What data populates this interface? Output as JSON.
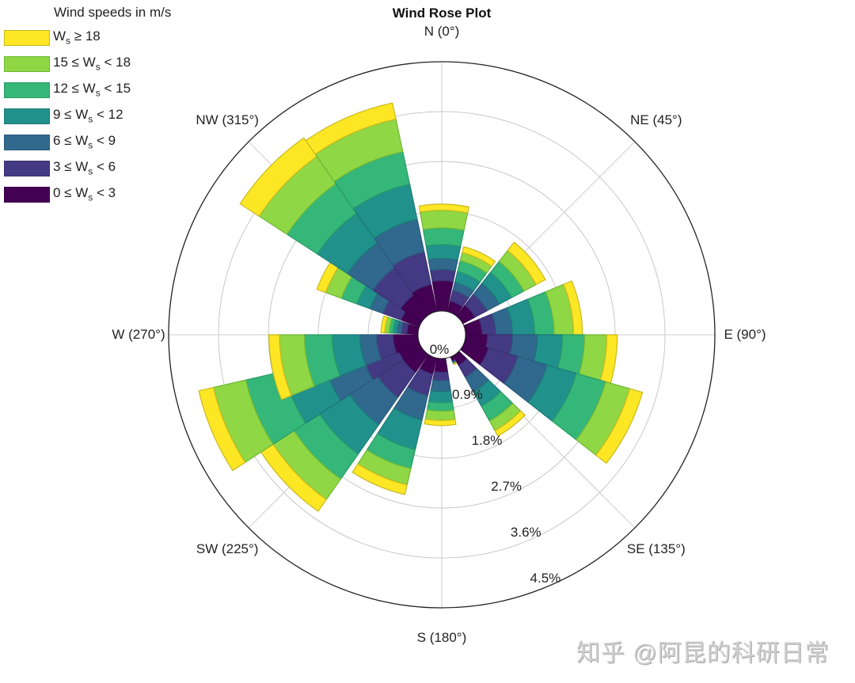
{
  "chart_data": {
    "type": "polar-bar (wind rose)",
    "title": "Wind Rose Plot",
    "legend_title": "Wind speeds in m/s",
    "legend": [
      {
        "label_pre": "W",
        "sub": "s",
        "label_post": " ≥ 18",
        "color": "#fde725"
      },
      {
        "label_pre": "15 ≤ W",
        "sub": "s",
        "label_post": " < 18",
        "color": "#8fd744"
      },
      {
        "label_pre": "12 ≤ W",
        "sub": "s",
        "label_post": " < 15",
        "color": "#35b779"
      },
      {
        "label_pre": "9 ≤ W",
        "sub": "s",
        "label_post": " < 12",
        "color": "#21918c"
      },
      {
        "label_pre": "6 ≤ W",
        "sub": "s",
        "label_post": " < 9",
        "color": "#31688e"
      },
      {
        "label_pre": "3 ≤ W",
        "sub": "s",
        "label_post": " < 6",
        "color": "#443a83"
      },
      {
        "label_pre": "0 ≤ W",
        "sub": "s",
        "label_post": " < 3",
        "color": "#440154"
      }
    ],
    "direction_labels": [
      {
        "text": "N (0°)",
        "angle": 0
      },
      {
        "text": "NE (45°)",
        "angle": 45
      },
      {
        "text": "E (90°)",
        "angle": 90
      },
      {
        "text": "SE (135°)",
        "angle": 135
      },
      {
        "text": "S (180°)",
        "angle": 180
      },
      {
        "text": "SW (225°)",
        "angle": 225
      },
      {
        "text": "W (270°)",
        "angle": 270
      },
      {
        "text": "NW (315°)",
        "angle": 315
      }
    ],
    "radial_ticks": [
      "0%",
      "0.9%",
      "1.8%",
      "2.7%",
      "3.6%",
      "4.5%"
    ],
    "radial_max_pct": 4.5,
    "speed_bins": [
      "0-3",
      "3-6",
      "6-9",
      "9-12",
      "12-15",
      "15-18",
      ">=18"
    ],
    "bars": [
      {
        "start": -10,
        "end": 12,
        "cum_pct": [
          0.55,
          0.75,
          0.95,
          1.2,
          1.5,
          1.82,
          1.93
        ]
      },
      {
        "start": 14,
        "end": 36,
        "cum_pct": [
          0.2,
          0.4,
          0.55,
          0.75,
          0.95,
          1.1,
          1.21
        ]
      },
      {
        "start": 38,
        "end": 62,
        "cum_pct": [
          0.25,
          0.5,
          0.75,
          1.0,
          1.25,
          1.5,
          1.69
        ]
      },
      {
        "start": 67.5,
        "end": 90,
        "cum_pct": [
          0.3,
          0.55,
          0.85,
          1.25,
          1.6,
          1.95,
          2.11
        ]
      },
      {
        "start": 90,
        "end": 112.5,
        "cum_pct": [
          0.4,
          0.85,
          1.3,
          1.75,
          2.15,
          2.55,
          2.74
        ]
      },
      {
        "start": 106,
        "end": 128,
        "cum_pct": [
          0.45,
          1.0,
          1.55,
          2.1,
          2.65,
          3.1,
          3.34
        ]
      },
      {
        "start": 134,
        "end": 151,
        "cum_pct": [
          0.2,
          0.45,
          0.75,
          1.05,
          1.35,
          1.55,
          1.66
        ]
      },
      {
        "start": 153,
        "end": 158,
        "cum_pct": [
          0.08,
          0.1,
          0.11,
          0.12,
          0.13,
          0.14,
          0.15
        ]
      },
      {
        "start": 171,
        "end": 191,
        "cum_pct": [
          0.25,
          0.4,
          0.6,
          0.8,
          0.95,
          1.12,
          1.21
        ]
      },
      {
        "start": 193,
        "end": 213,
        "cum_pct": [
          0.3,
          0.7,
          1.15,
          1.7,
          2.05,
          2.35,
          2.53
        ]
      },
      {
        "start": 215,
        "end": 237,
        "cum_pct": [
          0.4,
          0.95,
          1.55,
          2.2,
          2.75,
          3.2,
          3.46
        ]
      },
      {
        "start": 237,
        "end": 257,
        "cum_pct": [
          0.4,
          1.05,
          1.75,
          2.5,
          3.2,
          3.8,
          4.07
        ]
      },
      {
        "start": 248,
        "end": 270,
        "cum_pct": [
          0.45,
          0.75,
          1.05,
          1.55,
          2.05,
          2.5,
          2.69
        ]
      },
      {
        "start": 272,
        "end": 288,
        "cum_pct": [
          0.2,
          0.3,
          0.38,
          0.45,
          0.52,
          0.6,
          0.67
        ]
      },
      {
        "start": 290,
        "end": 311,
        "cum_pct": [
          0.35,
          0.7,
          0.95,
          1.2,
          1.5,
          1.8,
          1.97
        ]
      },
      {
        "start": 303,
        "end": 325,
        "cum_pct": [
          0.45,
          1.05,
          1.6,
          2.25,
          2.9,
          3.5,
          3.91
        ]
      },
      {
        "start": 325,
        "end": 348,
        "cum_pct": [
          0.5,
          1.1,
          1.7,
          2.35,
          2.95,
          3.55,
          3.85
        ]
      }
    ]
  },
  "watermark": "知乎 @阿昆的科研日常"
}
